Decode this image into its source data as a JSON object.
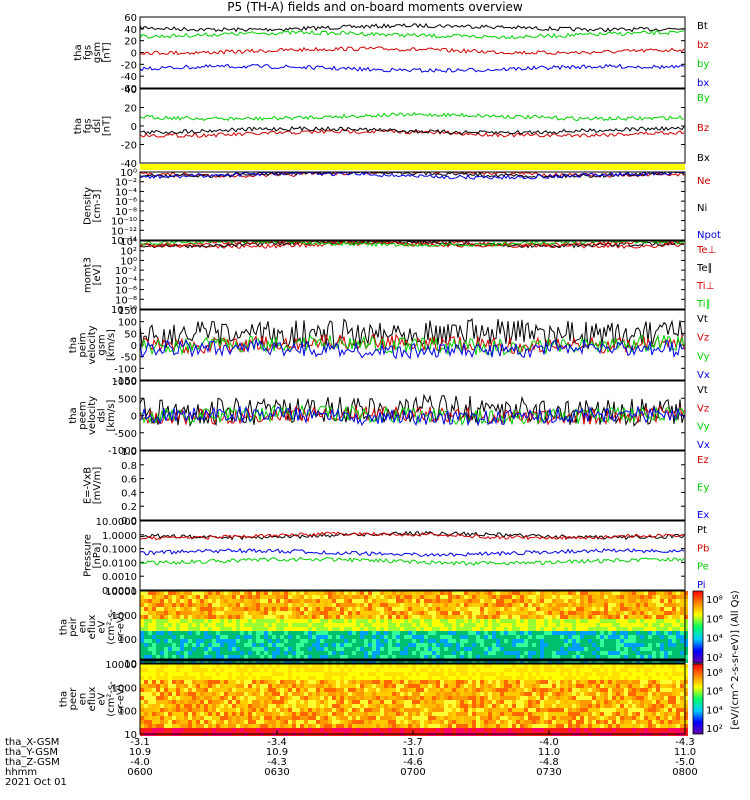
{
  "title": "P5 (TH-A) fields and on-board moments overview",
  "colors": {
    "black": "#000000",
    "red": "#d40000",
    "green": "#00d000",
    "blue": "#0000e6",
    "yellow": "#ffff00"
  },
  "colorbar": {
    "label": "[eV/(cm^2-s-sr-eV)] (All Qs)",
    "ticks": [
      "10⁸",
      "10⁶",
      "10⁴",
      "10²"
    ]
  },
  "xaxis": {
    "rows": [
      {
        "label": "tha_X-GSM",
        "values": [
          "-3.1",
          "-3.4",
          "-3.7",
          "-4.0",
          "-4.3"
        ]
      },
      {
        "label": "tha_Y-GSM",
        "values": [
          "10.9",
          "10.9",
          "11.0",
          "11.0",
          "11.0"
        ]
      },
      {
        "label": "tha_Z-GSM",
        "values": [
          "-4.0",
          "-4.3",
          "-4.6",
          "-4.8",
          "-5.0"
        ]
      },
      {
        "label": "hhmm",
        "values": [
          "0600",
          "0630",
          "0700",
          "0730",
          "0800"
        ]
      }
    ],
    "date": "2021 Oct 01"
  },
  "chart_data": [
    {
      "id": "fgs_gsm",
      "type": "line",
      "ylabel": [
        "tha",
        "fgs",
        "gsm",
        "[nT]"
      ],
      "ticks": [
        "60",
        "40",
        "20",
        "0",
        "-20",
        "-40",
        "-60"
      ],
      "ylim": [
        -60,
        60
      ],
      "series": [
        {
          "name": "Bt",
          "color": "black",
          "level": 42
        },
        {
          "name": "bz",
          "color": "red",
          "level": 3
        },
        {
          "name": "by",
          "color": "green",
          "level": 30
        },
        {
          "name": "bx",
          "color": "blue",
          "level": -27
        }
      ]
    },
    {
      "id": "fgs_dsl",
      "type": "line",
      "ylabel": [
        "tha",
        "fgs",
        "dsl",
        "[nT]"
      ],
      "ticks": [
        "40",
        "20",
        "0",
        "-20",
        "-40"
      ],
      "ylim": [
        -40,
        40
      ],
      "series": [
        {
          "name": "By",
          "color": "green",
          "level": 10
        },
        {
          "name": "Bz",
          "color": "red",
          "level": -8
        },
        {
          "name": "Bx",
          "color": "black",
          "level": -5
        }
      ]
    },
    {
      "id": "density",
      "type": "line",
      "ylabel": [
        "Density",
        "[cm-3]"
      ],
      "ticks": [
        "10⁰",
        "10⁻²",
        "10⁻⁴",
        "10⁻⁶",
        "10⁻⁸",
        "10⁻¹⁰",
        "10⁻¹²",
        "10⁻¹⁴"
      ],
      "log": true,
      "series": [
        {
          "name": "Ne",
          "color": "red",
          "level": 0.5
        },
        {
          "name": "Ni",
          "color": "black",
          "level": 0.4
        },
        {
          "name": "Npot",
          "color": "blue",
          "level": 0.2
        }
      ]
    },
    {
      "id": "moms_t",
      "type": "line",
      "ylabel": [
        "momt3",
        "[eV]"
      ],
      "ticks": [
        "10⁴",
        "10²",
        "10⁰",
        "10⁻²",
        "10⁻⁴",
        "10⁻⁶",
        "10⁻⁸",
        "10⁻¹⁰"
      ],
      "log": true,
      "series": [
        {
          "name": "Te⊥",
          "color": "red",
          "level": 2000
        },
        {
          "name": "Te∥",
          "color": "black",
          "level": 2500
        },
        {
          "name": "Ti⊥",
          "color": "red",
          "level": 3000
        },
        {
          "name": "Ti∥",
          "color": "green",
          "level": 3500
        }
      ]
    },
    {
      "id": "peim_velocity",
      "type": "line",
      "ylabel": [
        "tha",
        "peim",
        "velocity",
        "gsm",
        "[km/s]"
      ],
      "ticks": [
        "150",
        "100",
        "50",
        "0",
        "-50",
        "-100",
        "-150"
      ],
      "ylim": [
        -150,
        150
      ],
      "series": [
        {
          "name": "Vt",
          "color": "black",
          "level": 50
        },
        {
          "name": "Vz",
          "color": "red",
          "level": 5
        },
        {
          "name": "Vy",
          "color": "green",
          "level": 0
        },
        {
          "name": "Vx",
          "color": "blue",
          "level": -20
        }
      ]
    },
    {
      "id": "peem_velocity",
      "type": "line",
      "ylabel": [
        "tha",
        "peem",
        "velocity",
        "dsl",
        "[km/s]"
      ],
      "ticks": [
        "1000",
        "500",
        "0",
        "-500",
        "-1000"
      ],
      "ylim": [
        -1000,
        1000
      ],
      "series": [
        {
          "name": "Vt",
          "color": "black",
          "level": 150
        },
        {
          "name": "Vz",
          "color": "red",
          "level": 20
        },
        {
          "name": "Vy",
          "color": "green",
          "level": 0
        },
        {
          "name": "Vx",
          "color": "blue",
          "level": -20
        }
      ]
    },
    {
      "id": "efield",
      "type": "line",
      "ylabel": [
        "E=-VxB",
        "[mV/m]"
      ],
      "ticks": [
        "1.0",
        "0.8",
        "0.6",
        "0.4",
        "0.2",
        "0.0"
      ],
      "ylim": [
        0,
        1
      ],
      "series": [
        {
          "name": "Ez",
          "color": "red"
        },
        {
          "name": "Ey",
          "color": "green"
        },
        {
          "name": "Ex",
          "color": "blue"
        }
      ]
    },
    {
      "id": "pressure",
      "type": "line",
      "ylabel": [
        "Pressure",
        "[nPa]"
      ],
      "ticks": [
        "10.0000",
        "1.0000",
        "0.1000",
        "0.0100",
        "0.0010",
        "0.0001"
      ],
      "log": true,
      "series": [
        {
          "name": "Pt",
          "color": "black",
          "level": 0.9
        },
        {
          "name": "Pb",
          "color": "red",
          "level": 0.85
        },
        {
          "name": "Pe",
          "color": "green",
          "level": 0.012
        },
        {
          "name": "Pi",
          "color": "blue",
          "level": 0.05
        }
      ]
    },
    {
      "id": "peir_eflux",
      "type": "heatmap",
      "ylabel": [
        "tha",
        "peir",
        "en",
        "eflux",
        "eV",
        "(cm²-s-",
        "sr-eV)"
      ],
      "ticks": [
        "10000",
        "1000",
        "100",
        "10"
      ],
      "log": true
    },
    {
      "id": "peer_eflux",
      "type": "heatmap",
      "ylabel": [
        "tha",
        "peer",
        "en",
        "eflux",
        "eV",
        "(cm²-s-",
        "sr-eV)"
      ],
      "ticks": [
        "10000",
        "1000",
        "100",
        "10"
      ],
      "log": true
    }
  ]
}
